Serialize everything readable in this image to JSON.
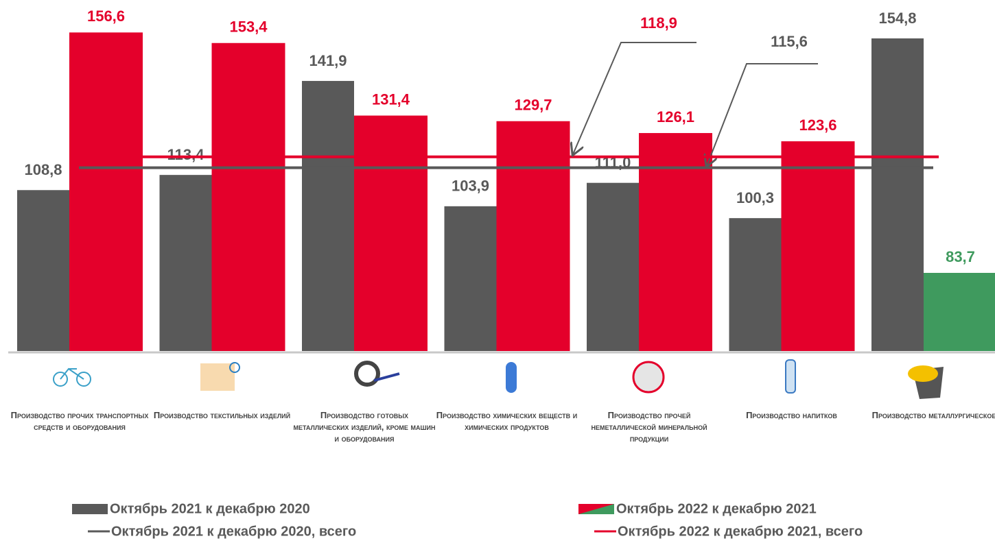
{
  "chart_data": {
    "type": "bar",
    "categories": [
      "Производство прочих транспортных средств и оборудования",
      "Производство текстильных изделий",
      "Производство готовых металлических изделий, кроме машин и оборудования",
      "Производство химических веществ и химических продуктов",
      "Производство прочей неметаллической минеральной продукции",
      "Производство напитков",
      "Производство металлургическое"
    ],
    "series": [
      {
        "name": "Октябрь 2021 к декабрю 2020",
        "color": "#595959",
        "values": [
          108.8,
          113.4,
          141.9,
          103.9,
          111.0,
          100.3,
          154.8
        ],
        "value_labels": [
          "108,8",
          "113,4",
          "141,9",
          "103,9",
          "111,0",
          "100,3",
          "154,8"
        ]
      },
      {
        "name": "Октябрь 2022 к декабрю 2021",
        "color": "#e4002b",
        "colors": [
          "#e4002b",
          "#e4002b",
          "#e4002b",
          "#e4002b",
          "#e4002b",
          "#e4002b",
          "#3f9a5e"
        ],
        "values": [
          156.6,
          153.4,
          131.4,
          129.7,
          126.1,
          123.6,
          83.7
        ],
        "value_labels": [
          "156,6",
          "153,4",
          "131,4",
          "129,7",
          "126,1",
          "123,6",
          "83,7"
        ]
      }
    ],
    "lines": [
      {
        "name": "Октябрь 2021 к декабрю 2020, всего",
        "color": "#595959",
        "value": 115.6,
        "value_label": "115,6"
      },
      {
        "name": "Октябрь 2022 к декабрю 2021, всего",
        "color": "#e4002b",
        "value": 118.9,
        "value_label": "118,9"
      }
    ],
    "ylim": [
      60,
      160
    ]
  }
}
